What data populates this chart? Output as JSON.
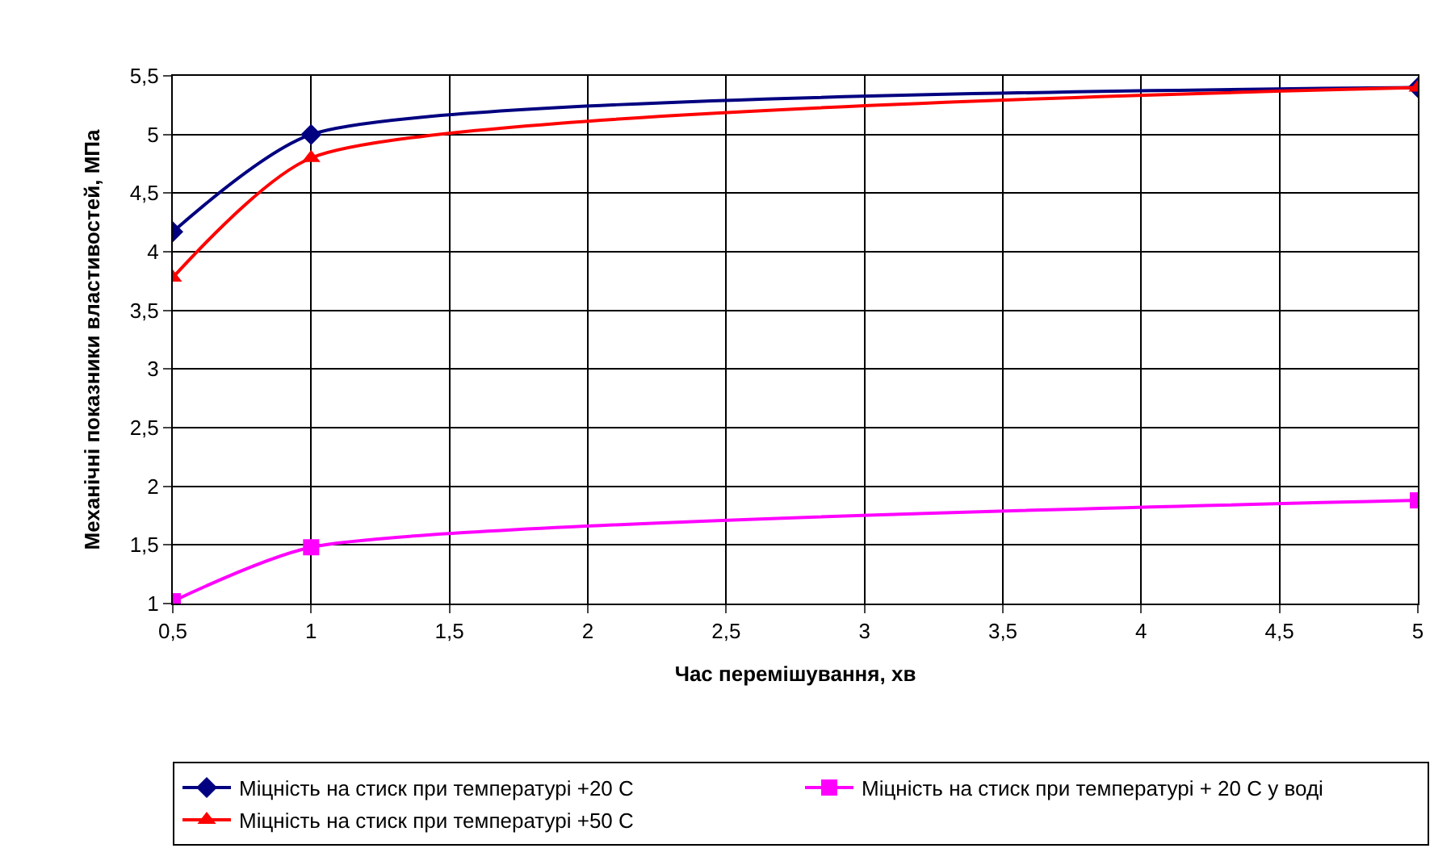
{
  "chart_data": {
    "type": "line",
    "xlabel": "Час перемішування, хв",
    "ylabel": "Механічні показники властивостей, МПа",
    "x": [
      0.5,
      1,
      5
    ],
    "series": [
      {
        "name": "Міцність на стиск при температурі +20 С",
        "color": "#000080",
        "values": [
          4.17,
          5.0,
          5.4
        ],
        "marker": "diamond"
      },
      {
        "name": "Міцність на стиск при температурі + 20 С у воді",
        "color": "#ff00ff",
        "values": [
          1.02,
          1.48,
          1.88
        ],
        "marker": "square"
      },
      {
        "name": "Міцність на стиск при температурі +50 С",
        "color": "#ff0000",
        "values": [
          3.78,
          4.8,
          5.4
        ],
        "marker": "triangle"
      }
    ],
    "xlim": [
      0.5,
      5
    ],
    "xticks": [
      {
        "value": 0.5,
        "label": "0,5"
      },
      1,
      {
        "value": 1.5,
        "label": "1,5"
      },
      2,
      {
        "value": 2.5,
        "label": "2,5"
      },
      3,
      {
        "value": 3.5,
        "label": "3,5"
      },
      4,
      {
        "value": 4.5,
        "label": "4,5"
      },
      5
    ],
    "ylim": [
      1,
      5.5
    ],
    "yticks": [
      1,
      {
        "value": 1.5,
        "label": "1,5"
      },
      2,
      {
        "value": 2.5,
        "label": "2,5"
      },
      3,
      {
        "value": 3.5,
        "label": "3,5"
      },
      4,
      {
        "value": 4.5,
        "label": "4,5"
      },
      5,
      {
        "value": 5.5,
        "label": "5,5"
      }
    ],
    "grid": true,
    "legend": "bottom",
    "line_style": "solid"
  }
}
